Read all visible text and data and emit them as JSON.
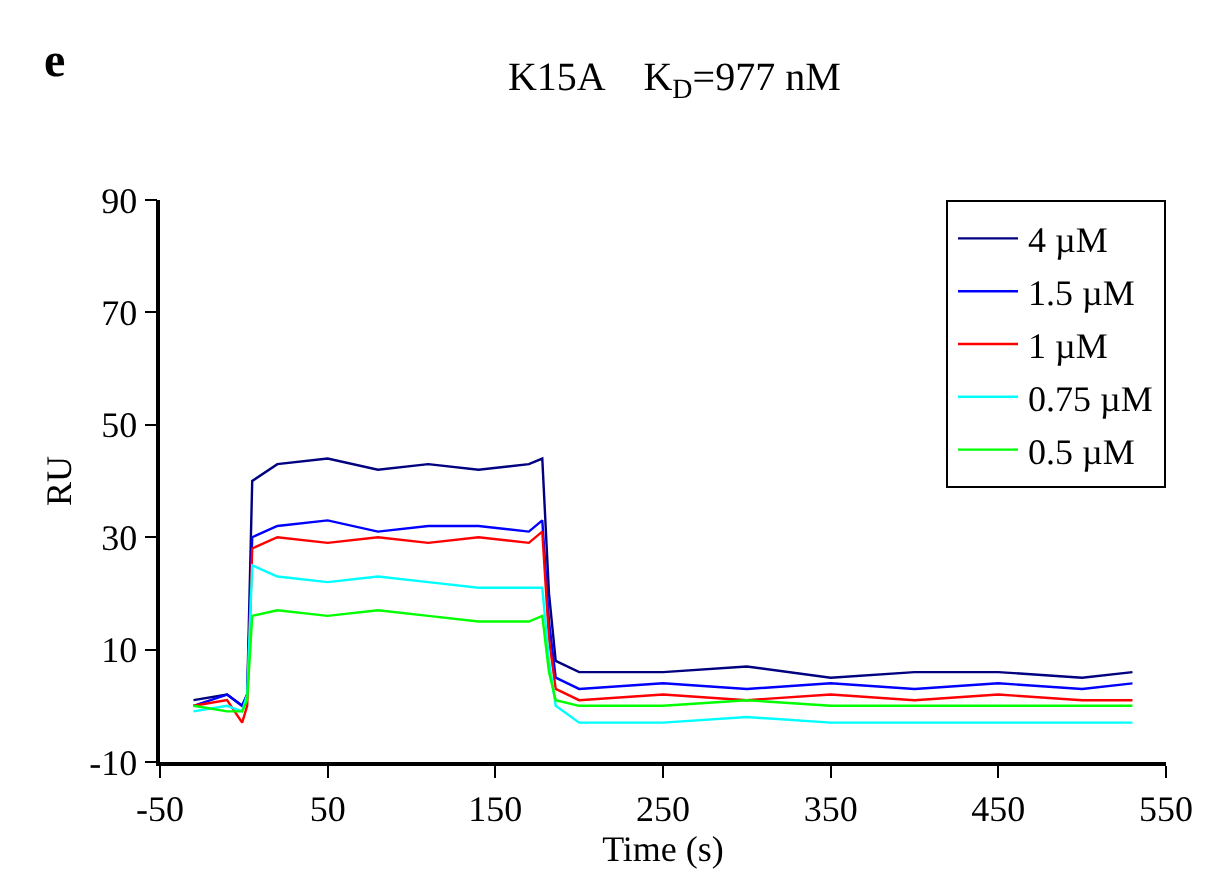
{
  "chart_data": {
    "type": "line",
    "title": "K15A    K$_{D}$=977 nM",
    "xlabel": "Time (s)",
    "ylabel": "RU",
    "annotations": [
      "e"
    ],
    "x": [
      -30,
      -10,
      -1,
      2,
      5,
      20,
      50,
      80,
      110,
      140,
      170,
      178,
      182,
      186,
      200,
      250,
      300,
      350,
      400,
      450,
      500,
      530
    ],
    "series": [
      {
        "name": "4 µM",
        "color": "#000080",
        "values": [
          1,
          2,
          0,
          2,
          40,
          43,
          44,
          42,
          43,
          42,
          43,
          44,
          20,
          8,
          6,
          6,
          7,
          5,
          6,
          6,
          5,
          6
        ]
      },
      {
        "name": "1.5 µM",
        "color": "#0000ff",
        "values": [
          0,
          2,
          0,
          2,
          30,
          32,
          33,
          31,
          32,
          32,
          31,
          33,
          15,
          5,
          3,
          4,
          3,
          4,
          3,
          4,
          3,
          4
        ]
      },
      {
        "name": "1 µM",
        "color": "#ff0000",
        "values": [
          0,
          1,
          -3,
          0,
          28,
          30,
          29,
          30,
          29,
          30,
          29,
          31,
          12,
          3,
          1,
          2,
          1,
          2,
          1,
          2,
          1,
          1
        ]
      },
      {
        "name": "0.75 µM",
        "color": "#00ffff",
        "values": [
          -1,
          0,
          -1,
          2,
          25,
          23,
          22,
          23,
          22,
          21,
          21,
          21,
          8,
          0,
          -3,
          -3,
          -2,
          -3,
          -3,
          -3,
          -3,
          -3
        ]
      },
      {
        "name": "0.5 µM",
        "color": "#00ff00",
        "values": [
          0,
          -1,
          -1,
          1,
          16,
          17,
          16,
          17,
          16,
          15,
          15,
          16,
          6,
          1,
          0,
          0,
          1,
          0,
          0,
          0,
          0,
          0
        ]
      }
    ],
    "xlim": [
      -50,
      550
    ],
    "xticks": [
      -50,
      50,
      150,
      250,
      350,
      450,
      550
    ],
    "ylim": [
      -10,
      90
    ],
    "yticks": [
      -10,
      10,
      30,
      50,
      70,
      90
    ],
    "legend": "top right",
    "marker": "none",
    "line_style": "solid"
  }
}
